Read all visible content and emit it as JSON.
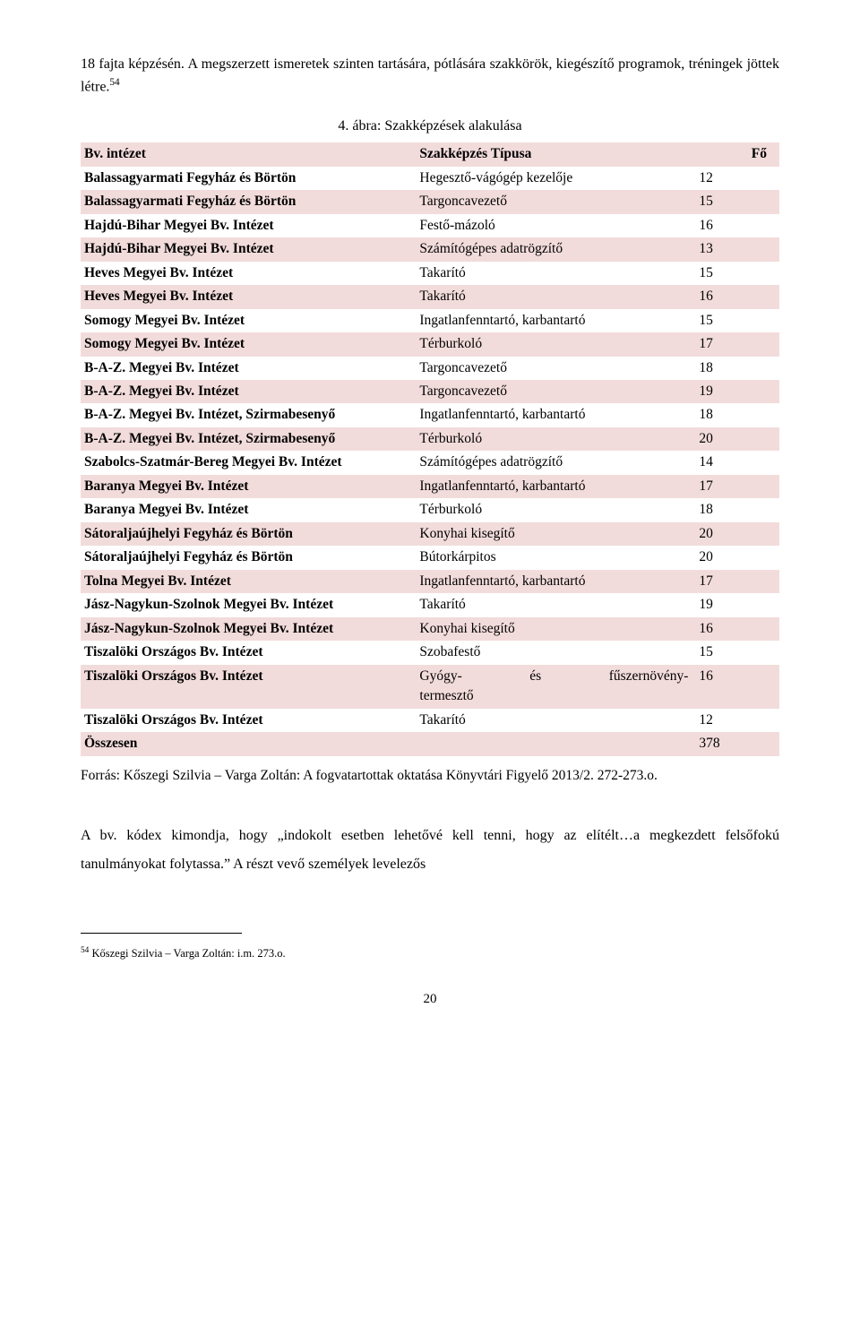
{
  "paragraph_top_a": "18 fajta képzésén. A megszerzett ismeretek szinten tartására, pótlására szakkörök, kiegészítő programok, tréningek jöttek létre.",
  "fn_ref_top": "54",
  "caption": "4. ábra: Szakképzések alakulása",
  "header": {
    "c1": "Bv. intézet",
    "c2": "Szakképzés Típusa",
    "c3": "Fő"
  },
  "rows": [
    {
      "inst": "Balassagyarmati Fegyház és Börtön",
      "type": "Hegesztő-vágógép kezelője",
      "count": "12"
    },
    {
      "inst": "Balassagyarmati Fegyház és Börtön",
      "type": "Targoncavezető",
      "count": "15"
    },
    {
      "inst": "Hajdú-Bihar Megyei Bv. Intézet",
      "type": "Festő-mázoló",
      "count": "16"
    },
    {
      "inst": "Hajdú-Bihar Megyei Bv. Intézet",
      "type": "Számítógépes adatrögzítő",
      "count": "13"
    },
    {
      "inst": "Heves Megyei Bv. Intézet",
      "type": "Takarító",
      "count": "15"
    },
    {
      "inst": "Heves Megyei Bv. Intézet",
      "type": "Takarító",
      "count": "16"
    },
    {
      "inst": "Somogy Megyei Bv. Intézet",
      "type": "Ingatlanfenntartó, karbantartó",
      "count": "15"
    },
    {
      "inst": "Somogy Megyei Bv. Intézet",
      "type": "Térburkoló",
      "count": "17"
    },
    {
      "inst": "B-A-Z. Megyei Bv. Intézet",
      "type": "Targoncavezető",
      "count": "18"
    },
    {
      "inst": "B-A-Z. Megyei Bv. Intézet",
      "type": "Targoncavezető",
      "count": "19"
    },
    {
      "inst": "B-A-Z. Megyei Bv. Intézet, Szirmabesenyő",
      "type": "Ingatlanfenntartó, karbantartó",
      "count": "18"
    },
    {
      "inst": "B-A-Z. Megyei Bv. Intézet, Szirmabesenyő",
      "type": "Térburkoló",
      "count": "20"
    },
    {
      "inst": "Szabolcs-Szatmár-Bereg Megyei Bv. Intézet",
      "type": "Számítógépes adatrögzítő",
      "count": "14"
    },
    {
      "inst": "Baranya Megyei Bv. Intézet",
      "type": "Ingatlanfenntartó, karbantartó",
      "count": "17"
    },
    {
      "inst": "Baranya Megyei Bv. Intézet",
      "type": "Térburkoló",
      "count": "18"
    },
    {
      "inst": "Sátoraljaújhelyi Fegyház és Börtön",
      "type": "Konyhai kisegítő",
      "count": "20"
    },
    {
      "inst": "Sátoraljaújhelyi Fegyház és Börtön",
      "type": "Bútorkárpitos",
      "count": "20"
    },
    {
      "inst": "Tolna Megyei Bv. Intézet",
      "type": "Ingatlanfenntartó, karbantartó",
      "count": "17"
    },
    {
      "inst": "Jász-Nagykun-Szolnok Megyei Bv. Intézet",
      "type": "Takarító",
      "count": "19"
    },
    {
      "inst": "Jász-Nagykun-Szolnok Megyei Bv. Intézet",
      "type": "Konyhai kisegítő",
      "count": "16"
    },
    {
      "inst": "Tiszalöki Országos Bv. Intézet",
      "type": "Szobafestő",
      "count": "15"
    },
    {
      "inst": "Tiszalöki Országos Bv. Intézet",
      "type_parts": [
        "Gyógy-",
        "és",
        "fűszernövény-"
      ],
      "type_line2": "termesztő",
      "count": "16",
      "multiline": true
    },
    {
      "inst": "Tiszalöki Országos Bv. Intézet",
      "type": "Takarító",
      "count": "12"
    }
  ],
  "total_label": "Összesen",
  "total_value": "378",
  "source": "Forrás: Kőszegi Szilvia – Varga Zoltán:  A fogvatartottak oktatása Könyvtári Figyelő 2013/2. 272-273.o.",
  "paragraph_bottom": "A bv. kódex kimondja, hogy „indokolt esetben lehetővé kell tenni, hogy az elítélt…a megkezdett felsőfokú tanulmányokat folytassa.” A részt vevő személyek levelezős",
  "footnote_num": "54",
  "footnote_text": " Kőszegi Szilvia – Varga Zoltán: i.m. 273.o.",
  "page_number": "20",
  "colors": {
    "shaded_bg": "#f2dcdb",
    "text": "#000000",
    "page_bg": "#ffffff"
  }
}
